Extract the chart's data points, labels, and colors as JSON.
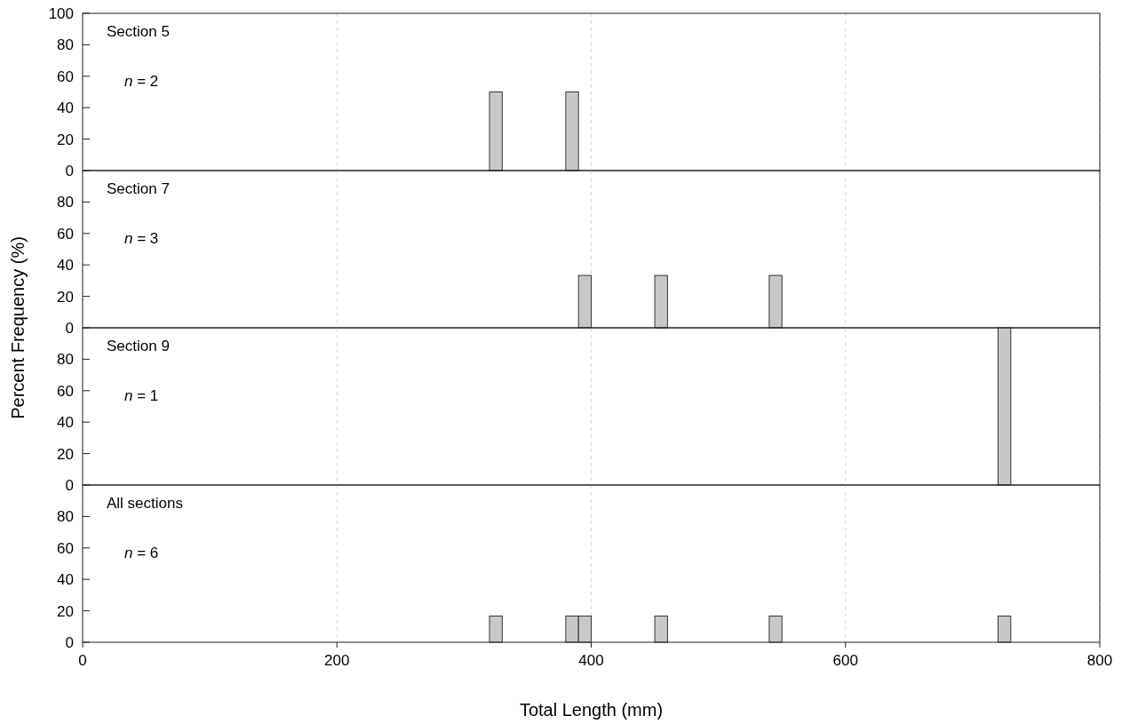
{
  "chart_data": [
    {
      "type": "histogram",
      "title": "Section 5",
      "annotations": [
        "n = 2"
      ],
      "ylabel": "Percent Frequency (%)",
      "color": "#c8c8c8",
      "bins": [
        320,
        330,
        340,
        350,
        360,
        370,
        380,
        390,
        400,
        410,
        420,
        430,
        440,
        450,
        460,
        470,
        480,
        490,
        500,
        510,
        520,
        530,
        540,
        550,
        560,
        570,
        580,
        590,
        600,
        610,
        620,
        630,
        640,
        650,
        660,
        670,
        680,
        690,
        700,
        710,
        720,
        730
      ],
      "values": [
        50,
        0,
        0,
        0,
        0,
        0,
        50,
        0,
        0,
        0,
        0,
        0,
        0,
        0,
        0,
        0,
        0,
        0,
        0,
        0,
        0,
        0,
        0,
        0,
        0,
        0,
        0,
        0,
        0,
        0,
        0,
        0,
        0,
        0,
        0,
        0,
        0,
        0,
        0,
        0,
        0
      ],
      "xlim": [
        0,
        800
      ],
      "xticks": [
        0,
        200,
        400,
        600,
        800
      ],
      "ylim": [
        0,
        100
      ],
      "yticks": [
        0,
        20,
        40,
        60,
        80,
        100
      ],
      "grid": "x",
      "tick_labels": "y"
    },
    {
      "type": "histogram",
      "title": "Section 7",
      "annotations": [
        "n = 3"
      ],
      "color": "#c8c8c8",
      "bins": [
        320,
        330,
        340,
        350,
        360,
        370,
        380,
        390,
        400,
        410,
        420,
        430,
        440,
        450,
        460,
        470,
        480,
        490,
        500,
        510,
        520,
        530,
        540,
        550,
        560,
        570,
        580,
        590,
        600,
        610,
        620,
        630,
        640,
        650,
        660,
        670,
        680,
        690,
        700,
        710,
        720,
        730
      ],
      "values": [
        0,
        0,
        0,
        0,
        0,
        0,
        0,
        33.3,
        0,
        0,
        0,
        0,
        0,
        33.3,
        0,
        0,
        0,
        0,
        0,
        0,
        0,
        0,
        33.3,
        0,
        0,
        0,
        0,
        0,
        0,
        0,
        0,
        0,
        0,
        0,
        0,
        0,
        0,
        0,
        0,
        0,
        0
      ],
      "xlim": [
        0,
        800
      ],
      "xticks": [
        0,
        200,
        400,
        600,
        800
      ],
      "ylim": [
        0,
        100
      ],
      "yticks": [
        0,
        20,
        40,
        60,
        80
      ],
      "grid": "x",
      "tick_labels": "y"
    },
    {
      "type": "histogram",
      "title": "Section 9",
      "annotations": [
        "n = 1"
      ],
      "color": "#c8c8c8",
      "bins": [
        320,
        330,
        340,
        350,
        360,
        370,
        380,
        390,
        400,
        410,
        420,
        430,
        440,
        450,
        460,
        470,
        480,
        490,
        500,
        510,
        520,
        530,
        540,
        550,
        560,
        570,
        580,
        590,
        600,
        610,
        620,
        630,
        640,
        650,
        660,
        670,
        680,
        690,
        700,
        710,
        720,
        730
      ],
      "values": [
        0,
        0,
        0,
        0,
        0,
        0,
        0,
        0,
        0,
        0,
        0,
        0,
        0,
        0,
        0,
        0,
        0,
        0,
        0,
        0,
        0,
        0,
        0,
        0,
        0,
        0,
        0,
        0,
        0,
        0,
        0,
        0,
        0,
        0,
        0,
        0,
        0,
        0,
        0,
        0,
        100
      ],
      "xlim": [
        0,
        800
      ],
      "xticks": [
        0,
        200,
        400,
        600,
        800
      ],
      "ylim": [
        0,
        100
      ],
      "yticks": [
        0,
        20,
        40,
        60,
        80
      ],
      "grid": "x",
      "tick_labels": "y"
    },
    {
      "type": "histogram",
      "title": "All sections",
      "annotations": [
        "n = 6"
      ],
      "xlabel": "Total Length (mm)",
      "color": "#c8c8c8",
      "bins": [
        320,
        330,
        340,
        350,
        360,
        370,
        380,
        390,
        400,
        410,
        420,
        430,
        440,
        450,
        460,
        470,
        480,
        490,
        500,
        510,
        520,
        530,
        540,
        550,
        560,
        570,
        580,
        590,
        600,
        610,
        620,
        630,
        640,
        650,
        660,
        670,
        680,
        690,
        700,
        710,
        720,
        730
      ],
      "values": [
        16.7,
        0,
        0,
        0,
        0,
        0,
        16.7,
        16.7,
        0,
        0,
        0,
        0,
        0,
        16.7,
        0,
        0,
        0,
        0,
        0,
        0,
        0,
        0,
        16.7,
        0,
        0,
        0,
        0,
        0,
        0,
        0,
        0,
        0,
        0,
        0,
        0,
        0,
        0,
        0,
        0,
        0,
        16.7
      ],
      "xlim": [
        0,
        800
      ],
      "xticks": [
        0,
        200,
        400,
        600,
        800
      ],
      "ylim": [
        0,
        100
      ],
      "yticks": [
        0,
        20,
        40,
        60,
        80
      ],
      "grid": "x"
    }
  ]
}
